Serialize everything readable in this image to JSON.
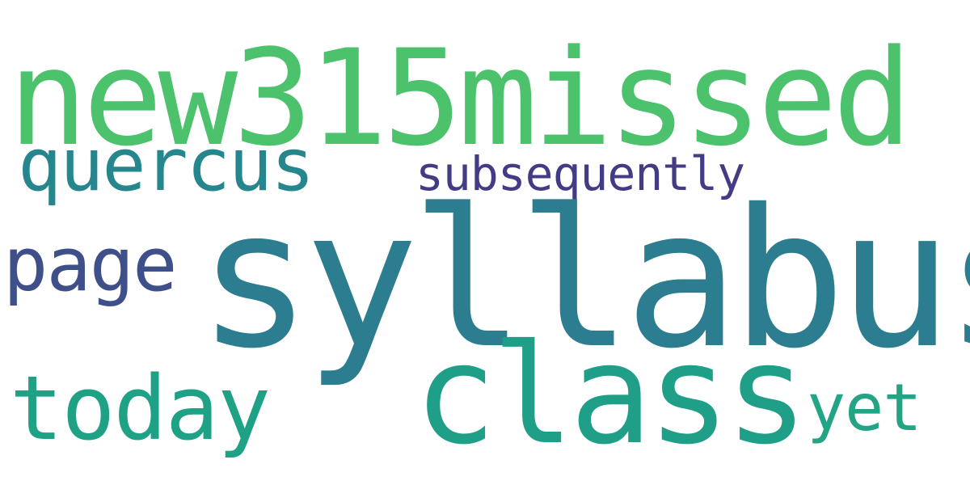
{
  "cloud": {
    "background": "#ffffff",
    "words": [
      {
        "id": "new315missed",
        "text": "new315missed",
        "color": "#4cc26c"
      },
      {
        "id": "syllabus",
        "text": "syllabus",
        "color": "#2b7d8f"
      },
      {
        "id": "class",
        "text": "class",
        "color": "#1f9e88"
      },
      {
        "id": "quercus",
        "text": "quercus",
        "color": "#26868d"
      },
      {
        "id": "today",
        "text": "today",
        "color": "#1fa186"
      },
      {
        "id": "page",
        "text": "page",
        "color": "#3e4f8a"
      },
      {
        "id": "yet",
        "text": "yet",
        "color": "#23a585"
      },
      {
        "id": "subsequently",
        "text": "subsequently",
        "color": "#433c84"
      }
    ]
  }
}
